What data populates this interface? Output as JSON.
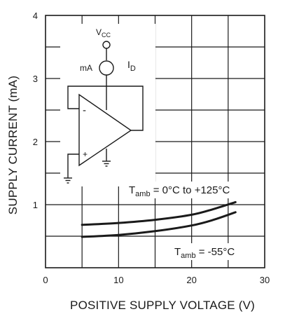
{
  "chart_data": {
    "type": "line",
    "xlabel": "POSITIVE SUPPLY VOLTAGE (V)",
    "ylabel": "SUPPLY CURRENT (mA)",
    "xlim": [
      0,
      30
    ],
    "ylim": [
      0,
      4
    ],
    "xticks": [
      "0",
      "10",
      "20",
      "30"
    ],
    "yticks": [
      "1",
      "2",
      "3",
      "4"
    ],
    "grid": true,
    "series": [
      {
        "name": "Tamb = -55°C",
        "name_main": "T",
        "name_sub": "amb",
        "name_rest": " = -55°C",
        "x": [
          5,
          10,
          15,
          20,
          23,
          26
        ],
        "y": [
          0.68,
          0.71,
          0.76,
          0.84,
          0.93,
          1.04
        ]
      },
      {
        "name": "Tamb = 0°C to +125°C",
        "name_main": "T",
        "name_sub": "amb",
        "name_rest": " = 0°C to +125°C",
        "x": [
          5,
          10,
          15,
          20,
          23,
          26
        ],
        "y": [
          0.49,
          0.52,
          0.58,
          0.67,
          0.76,
          0.88
        ]
      }
    ]
  },
  "schematic": {
    "supply_main": "V",
    "supply_sub": "CC",
    "meter_label": "mA",
    "current_main": "I",
    "current_sub": "D",
    "minus_sign": "-",
    "plus_sign": "+"
  },
  "colors": {
    "line": "#1a1a1a",
    "grid": "#1a1a1a",
    "background": "#ffffff"
  }
}
